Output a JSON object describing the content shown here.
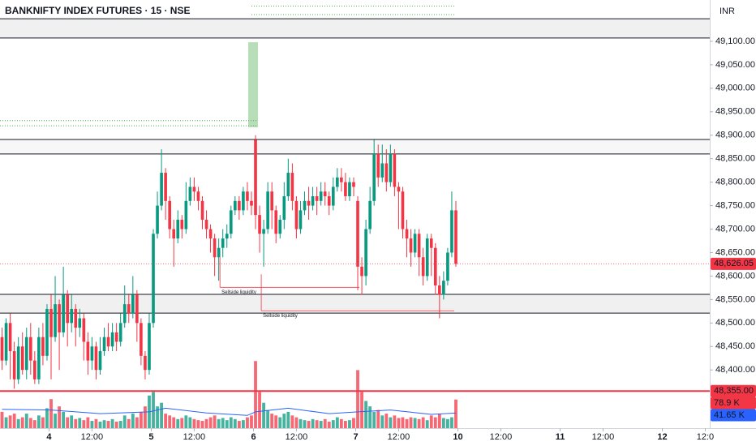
{
  "chart_data": {
    "type": "candlestick",
    "title": "BANKNIFTY INDEX FUTURES · 15 · NSE",
    "currency": "INR",
    "up_color": "#089981",
    "down_color": "#f23645",
    "xlim": [
      -0.5,
      173.1
    ],
    "ylim": [
      48276,
      49188
    ],
    "xticks": [
      {
        "value": 11.5,
        "label": "4"
      },
      {
        "value": 22,
        "label": "12:00"
      },
      {
        "value": 36.5,
        "label": "5"
      },
      {
        "value": 47,
        "label": "12:00"
      },
      {
        "value": 61.5,
        "label": "6"
      },
      {
        "value": 72,
        "label": "12:00"
      },
      {
        "value": 86.5,
        "label": "7"
      },
      {
        "value": 97,
        "label": "12:00"
      },
      {
        "value": 111.5,
        "label": "10"
      },
      {
        "value": 122,
        "label": "12:00"
      },
      {
        "value": 136.5,
        "label": "11"
      },
      {
        "value": 147,
        "label": "12:00"
      },
      {
        "value": 161.5,
        "label": "12"
      },
      {
        "value": 172,
        "label": "12:0"
      }
    ],
    "yticks": [
      {
        "value": 48400,
        "label": "48,400.00"
      },
      {
        "value": 48450,
        "label": "48,450.00"
      },
      {
        "value": 48500,
        "label": "48,500.00"
      },
      {
        "value": 48550,
        "label": "48,550.00"
      },
      {
        "value": 48600,
        "label": "48,600.00"
      },
      {
        "value": 48650,
        "label": "48,650.00"
      },
      {
        "value": 48700,
        "label": "48,700.00"
      },
      {
        "value": 48750,
        "label": "48,750.00"
      },
      {
        "value": 48800,
        "label": "48,800.00"
      },
      {
        "value": 48850,
        "label": "48,850.00"
      },
      {
        "value": 48900,
        "label": "48,900.00"
      },
      {
        "value": 48950,
        "label": "48,950.00"
      },
      {
        "value": 49000,
        "label": "49,000.00"
      },
      {
        "value": 49050,
        "label": "49,050.00"
      },
      {
        "value": 49100,
        "label": "49,100.00"
      }
    ],
    "candles": [
      [
        48470,
        48490,
        48400,
        48420
      ],
      [
        48420,
        48510,
        48410,
        48500
      ],
      [
        48500,
        48520,
        48380,
        48440
      ],
      [
        48440,
        48460,
        48360,
        48380
      ],
      [
        48380,
        48470,
        48370,
        48450
      ],
      [
        48450,
        48480,
        48390,
        48400
      ],
      [
        48400,
        48490,
        48380,
        48470
      ],
      [
        48470,
        48500,
        48390,
        48420
      ],
      [
        48420,
        48440,
        48370,
        48380
      ],
      [
        48380,
        48490,
        48370,
        48470
      ],
      [
        48470,
        48500,
        48410,
        48430
      ],
      [
        48430,
        48540,
        48420,
        48530
      ],
      [
        48530,
        48560,
        48380,
        48470
      ],
      [
        48470,
        48600,
        48460,
        48540
      ],
      [
        48540,
        48550,
        48400,
        48480
      ],
      [
        48480,
        48620,
        48470,
        48560
      ],
      [
        48560,
        48570,
        48450,
        48500
      ],
      [
        48500,
        48560,
        48480,
        48530
      ],
      [
        48530,
        48540,
        48450,
        48490
      ],
      [
        48490,
        48530,
        48470,
        48510
      ],
      [
        48510,
        48520,
        48420,
        48460
      ],
      [
        48460,
        48480,
        48390,
        48420
      ],
      [
        48420,
        48470,
        48400,
        48450
      ],
      [
        48450,
        48460,
        48380,
        48400
      ],
      [
        48400,
        48470,
        48390,
        48440
      ],
      [
        48440,
        48490,
        48430,
        48470
      ],
      [
        48470,
        48500,
        48440,
        48450
      ],
      [
        48450,
        48500,
        48440,
        48480
      ],
      [
        48480,
        48500,
        48440,
        48460
      ],
      [
        48460,
        48520,
        48450,
        48500
      ],
      [
        48500,
        48580,
        48490,
        48540
      ],
      [
        48540,
        48560,
        48500,
        48520
      ],
      [
        48520,
        48600,
        48510,
        48560
      ],
      [
        48560,
        48570,
        48460,
        48500
      ],
      [
        48500,
        48510,
        48410,
        48430
      ],
      [
        48430,
        48440,
        48380,
        48400
      ],
      [
        48400,
        48520,
        48390,
        48500
      ],
      [
        48500,
        48700,
        48490,
        48690
      ],
      [
        48690,
        48780,
        48680,
        48750
      ],
      [
        48750,
        48870,
        48740,
        48820
      ],
      [
        48820,
        48830,
        48720,
        48760
      ],
      [
        48760,
        48770,
        48680,
        48700
      ],
      [
        48700,
        48720,
        48620,
        48680
      ],
      [
        48680,
        48740,
        48670,
        48720
      ],
      [
        48720,
        48730,
        48680,
        48700
      ],
      [
        48700,
        48800,
        48690,
        48760
      ],
      [
        48760,
        48810,
        48750,
        48790
      ],
      [
        48790,
        48810,
        48760,
        48780
      ],
      [
        48780,
        48790,
        48740,
        48760
      ],
      [
        48760,
        48770,
        48700,
        48720
      ],
      [
        48720,
        48740,
        48680,
        48700
      ],
      [
        48700,
        48710,
        48650,
        48680
      ],
      [
        48680,
        48690,
        48600,
        48640
      ],
      [
        48640,
        48680,
        48590,
        48660
      ],
      [
        48660,
        48700,
        48640,
        48680
      ],
      [
        48680,
        48710,
        48660,
        48690
      ],
      [
        48690,
        48750,
        48680,
        48740
      ],
      [
        48740,
        48770,
        48730,
        48760
      ],
      [
        48760,
        48770,
        48720,
        48740
      ],
      [
        48740,
        48790,
        48730,
        48780
      ],
      [
        48780,
        48800,
        48740,
        48760
      ],
      [
        48760,
        48780,
        48730,
        48750
      ],
      [
        48890,
        48900,
        48700,
        48730
      ],
      [
        48730,
        48750,
        48650,
        48690
      ],
      [
        48690,
        48720,
        48620,
        48700
      ],
      [
        48700,
        48800,
        48690,
        48780
      ],
      [
        48780,
        48800,
        48700,
        48740
      ],
      [
        48740,
        48750,
        48670,
        48690
      ],
      [
        48690,
        48730,
        48680,
        48720
      ],
      [
        48720,
        48800,
        48700,
        48770
      ],
      [
        48770,
        48850,
        48760,
        48820
      ],
      [
        48820,
        48840,
        48740,
        48760
      ],
      [
        48760,
        48770,
        48680,
        48700
      ],
      [
        48700,
        48760,
        48690,
        48740
      ],
      [
        48740,
        48780,
        48730,
        48760
      ],
      [
        48760,
        48790,
        48720,
        48750
      ],
      [
        48750,
        48790,
        48740,
        48770
      ],
      [
        48770,
        48790,
        48730,
        48760
      ],
      [
        48760,
        48800,
        48750,
        48780
      ],
      [
        48780,
        48800,
        48750,
        48770
      ],
      [
        48770,
        48780,
        48730,
        48750
      ],
      [
        48750,
        48810,
        48740,
        48790
      ],
      [
        48790,
        48830,
        48780,
        48810
      ],
      [
        48810,
        48830,
        48780,
        48800
      ],
      [
        48800,
        48820,
        48760,
        48770
      ],
      [
        48770,
        48810,
        48760,
        48800
      ],
      [
        48800,
        48810,
        48770,
        48790
      ],
      [
        48760,
        48770,
        48570,
        48620
      ],
      [
        48620,
        48640,
        48560,
        48600
      ],
      [
        48600,
        48720,
        48580,
        48700
      ],
      [
        48700,
        48790,
        48690,
        48760
      ],
      [
        48760,
        48890,
        48750,
        48860
      ],
      [
        48860,
        48880,
        48790,
        48810
      ],
      [
        48810,
        48880,
        48800,
        48840
      ],
      [
        48840,
        48870,
        48780,
        48800
      ],
      [
        48800,
        48880,
        48790,
        48860
      ],
      [
        48860,
        48870,
        48770,
        48790
      ],
      [
        48790,
        48800,
        48700,
        48780
      ],
      [
        48780,
        48790,
        48680,
        48700
      ],
      [
        48700,
        48720,
        48640,
        48680
      ],
      [
        48680,
        48700,
        48620,
        48650
      ],
      [
        48650,
        48700,
        48640,
        48690
      ],
      [
        48690,
        48700,
        48600,
        48640
      ],
      [
        48640,
        48660,
        48580,
        48600
      ],
      [
        48600,
        48690,
        48590,
        48680
      ],
      [
        48680,
        48690,
        48600,
        48660
      ],
      [
        48660,
        48670,
        48560,
        48580
      ],
      [
        48580,
        48600,
        48510,
        48560
      ],
      [
        48560,
        48610,
        48550,
        48590
      ],
      [
        48590,
        48660,
        48580,
        48650
      ],
      [
        48650,
        48780,
        48640,
        48740
      ],
      [
        48740,
        48760,
        48620,
        48626.05
      ]
    ],
    "volume": {
      "ylim": [
        0,
        190000
      ],
      "values": [
        45000,
        30000,
        35000,
        40000,
        25000,
        30000,
        40000,
        28000,
        22000,
        35000,
        30000,
        55000,
        80000,
        40000,
        60000,
        45000,
        30000,
        35000,
        25000,
        28000,
        22000,
        30000,
        20000,
        25000,
        18000,
        22000,
        20000,
        25000,
        18000,
        20000,
        35000,
        25000,
        40000,
        30000,
        45000,
        60000,
        90000,
        100000,
        60000,
        70000,
        40000,
        35000,
        30000,
        25000,
        28000,
        35000,
        30000,
        25000,
        22000,
        20000,
        25000,
        30000,
        35000,
        25000,
        28000,
        22000,
        30000,
        25000,
        20000,
        22000,
        30000,
        35000,
        185000,
        100000,
        70000,
        50000,
        40000,
        35000,
        30000,
        40000,
        45000,
        35000,
        30000,
        25000,
        22000,
        20000,
        25000,
        22000,
        20000,
        25000,
        18000,
        22000,
        30000,
        25000,
        20000,
        22000,
        28000,
        160000,
        100000,
        75000,
        60000,
        45000,
        50000,
        35000,
        40000,
        30000,
        35000,
        28000,
        30000,
        25000,
        30000,
        28000,
        25000,
        30000,
        22000,
        35000,
        30000,
        40000,
        28000,
        25000,
        30000,
        78900
      ],
      "ma_color": "#2962ff",
      "ma_x": [
        0,
        12,
        24,
        36,
        40,
        50,
        60,
        62,
        70,
        80,
        87,
        95,
        105,
        111
      ],
      "ma_values": [
        52000,
        50000,
        40000,
        45000,
        55000,
        42000,
        35000,
        45000,
        55000,
        40000,
        45000,
        50000,
        38000,
        41650
      ]
    },
    "zones": [
      {
        "low": 49107,
        "high": 49148,
        "color": "#f0f0f0"
      },
      {
        "low": 48860,
        "high": 48891,
        "color": "#f7f7f7"
      },
      {
        "low": 48521,
        "high": 48561,
        "color": "#f0f0f0"
      }
    ],
    "dotted_lines": [
      {
        "value": 48931,
        "x": [
          -0.5,
          62.6
        ],
        "color": "#4caf50"
      },
      {
        "value": 48920,
        "x": [
          -0.5,
          62.6
        ],
        "color": "#4caf50"
      },
      {
        "value": 49175,
        "x": [
          61,
          110.6
        ],
        "color": "#4caf50"
      },
      {
        "value": 49157,
        "x": [
          61,
          110.6
        ],
        "color": "#4caf50"
      }
    ],
    "box": {
      "x": [
        60.2,
        62.6
      ],
      "low": 48917,
      "high": 49098,
      "color": "#a5d6a7"
    },
    "liquidity": [
      {
        "label": "Sellside liquidity",
        "value": 48576,
        "x": [
          53.3,
          87.4
        ]
      },
      {
        "label": "Sellside liquidity",
        "value": 48526,
        "x": [
          63.4,
          110.6
        ]
      }
    ],
    "price_labels": [
      {
        "value": 48626.05,
        "label": "48,626.05",
        "color": "#f23645",
        "line": "dotted"
      },
      {
        "value": 48355,
        "label": "48,355.00",
        "color": "#f23645",
        "line": "solid"
      }
    ],
    "volume_labels": [
      {
        "value": 78900,
        "label": "78.9 K",
        "color": "#f23645"
      },
      {
        "value": 41650,
        "label": "41.65 K",
        "color": "#2962ff"
      }
    ]
  }
}
